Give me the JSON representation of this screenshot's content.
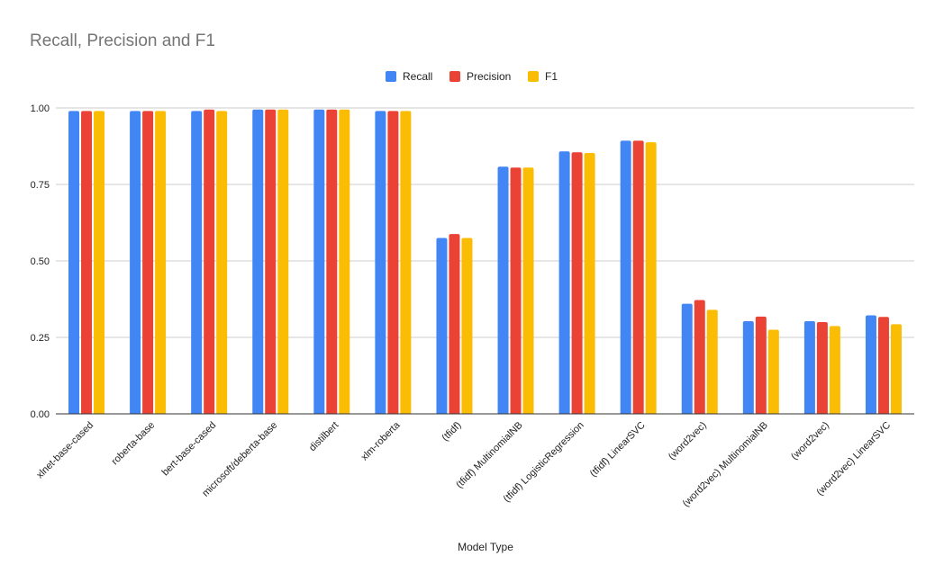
{
  "chart_data": {
    "type": "bar",
    "title": "Recall, Precision and F1",
    "xlabel": "Model Type",
    "ylabel": "",
    "ylim": [
      0,
      1
    ],
    "yticks": [
      "0.00",
      "0.25",
      "0.50",
      "0.75",
      "1.00"
    ],
    "yticks_values": [
      0,
      0.25,
      0.5,
      0.75,
      1.0
    ],
    "grid": true,
    "legend_position": "top",
    "categories": [
      "xlnet-base-cased",
      "roberta-base",
      "bert-base-cased",
      "microsoft/deberta-base",
      "distilbert",
      "xlm-roberta",
      "(tfidf)",
      "(tfidf) MultinomialNB",
      "(tfidf) LogisticRegression",
      "(tfidf) LinearSVC",
      "(word2vec)",
      "(word2vec) MultinomialNB",
      "(word2vec)",
      "(word2vec) LinearSVC"
    ],
    "series": [
      {
        "name": "Recall",
        "color": "#4285f4",
        "values": [
          0.99,
          0.99,
          0.99,
          0.995,
          0.995,
          0.99,
          0.575,
          0.808,
          0.858,
          0.893,
          0.36,
          0.303,
          0.303,
          0.322
        ]
      },
      {
        "name": "Precision",
        "color": "#ea4335",
        "values": [
          0.99,
          0.99,
          0.995,
          0.995,
          0.995,
          0.99,
          0.588,
          0.805,
          0.855,
          0.893,
          0.372,
          0.318,
          0.3,
          0.317
        ]
      },
      {
        "name": "F1",
        "color": "#fbbc04",
        "values": [
          0.99,
          0.99,
          0.99,
          0.995,
          0.995,
          0.99,
          0.575,
          0.805,
          0.853,
          0.888,
          0.34,
          0.275,
          0.287,
          0.293
        ]
      }
    ]
  }
}
